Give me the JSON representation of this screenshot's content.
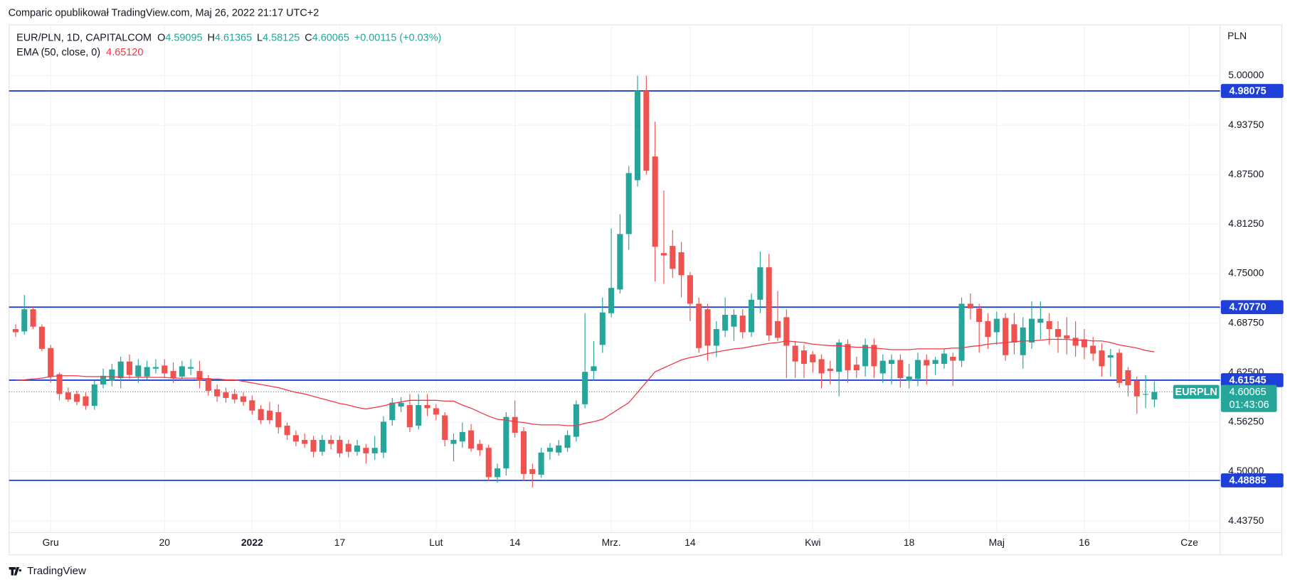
{
  "header": {
    "attribution": "Comparic opublikował TradingView.com, Maj 26, 2022 21:17 UTC+2"
  },
  "footer": {
    "brand": "TradingView"
  },
  "chart_data": {
    "type": "candlestick",
    "symbol": "EUR/PLN, 1D, CAPITALCOM",
    "ohlc_letters": [
      "O",
      "H",
      "L",
      "C"
    ],
    "change": "+0.00115 (+0.03%)",
    "currency": "PLN",
    "up_color": "#26a69a",
    "down_color": "#ef5350",
    "open": [
      4.68,
      4.677,
      4.705,
      4.683,
      4.656,
      4.623,
      4.6,
      4.598,
      4.595,
      4.583,
      4.61,
      4.615,
      4.618,
      4.639,
      4.62,
      4.62,
      4.63,
      4.634,
      4.627,
      4.62,
      4.63,
      4.627,
      4.618,
      4.604,
      4.6,
      4.598,
      4.595,
      4.59,
      4.579,
      4.577,
      4.575,
      4.558,
      4.546,
      4.54,
      4.54,
      4.525,
      4.54,
      4.54,
      4.535,
      4.525,
      4.53,
      4.523,
      4.524,
      4.565,
      4.582,
      4.584,
      4.558,
      4.584,
      4.58,
      4.571,
      4.535,
      4.538,
      4.552,
      4.535,
      4.53,
      4.493,
      4.504,
      4.569,
      4.551,
      4.503,
      4.496,
      4.525,
      4.524,
      4.53,
      4.544,
      4.585,
      4.627,
      4.66,
      4.7,
      4.73,
      4.8,
      4.868,
      4.981,
      4.898,
      4.776,
      4.785,
      4.777,
      4.748,
      4.712,
      4.705,
      4.659,
      4.678,
      4.683,
      4.697,
      4.676,
      4.717,
      4.758,
      4.69,
      4.695,
      4.659,
      4.653,
      4.648,
      4.642,
      4.63,
      4.626,
      4.661,
      4.635,
      4.633,
      4.66,
      4.624,
      4.636,
      4.641,
      4.615,
      4.617,
      4.641,
      4.636,
      4.636,
      4.645,
      4.64,
      4.712,
      4.706,
      4.69,
      4.676,
      4.694,
      4.686,
      4.647,
      4.663,
      4.688,
      4.69,
      4.68,
      4.672,
      4.669,
      4.667,
      4.659,
      4.653,
      4.644,
      4.65,
      4.628,
      4.615,
      4.597,
      4.59095
    ],
    "high": [
      4.686,
      4.723,
      4.708,
      4.686,
      4.66,
      4.625,
      4.606,
      4.602,
      4.6,
      4.615,
      4.63,
      4.636,
      4.645,
      4.648,
      4.642,
      4.64,
      4.642,
      4.642,
      4.638,
      4.64,
      4.642,
      4.64,
      4.622,
      4.61,
      4.606,
      4.604,
      4.6,
      4.596,
      4.584,
      4.588,
      4.585,
      4.562,
      4.552,
      4.548,
      4.545,
      4.546,
      4.546,
      4.545,
      4.54,
      4.54,
      4.535,
      4.545,
      4.57,
      4.593,
      4.594,
      4.598,
      4.598,
      4.598,
      4.585,
      4.575,
      4.548,
      4.562,
      4.56,
      4.54,
      4.534,
      4.51,
      4.575,
      4.59,
      4.556,
      4.51,
      4.53,
      4.536,
      4.54,
      4.552,
      4.59,
      4.7,
      4.665,
      4.72,
      4.807,
      4.825,
      4.886,
      5.0,
      5.0,
      4.942,
      4.855,
      4.805,
      4.79,
      4.752,
      4.72,
      4.712,
      4.69,
      4.72,
      4.705,
      4.705,
      4.725,
      4.778,
      4.775,
      4.728,
      4.705,
      4.665,
      4.66,
      4.652,
      4.648,
      4.64,
      4.667,
      4.667,
      4.645,
      4.668,
      4.668,
      4.648,
      4.648,
      4.648,
      4.636,
      4.65,
      4.648,
      4.645,
      4.655,
      4.65,
      4.72,
      4.725,
      4.712,
      4.7,
      4.702,
      4.7,
      4.7,
      4.695,
      4.715,
      4.715,
      4.7,
      4.69,
      4.695,
      4.69,
      4.68,
      4.67,
      4.662,
      4.655,
      4.655,
      4.632,
      4.62,
      4.622,
      4.61365
    ],
    "low": [
      4.67,
      4.673,
      4.68,
      4.652,
      4.612,
      4.59,
      4.588,
      4.584,
      4.578,
      4.578,
      4.605,
      4.608,
      4.605,
      4.617,
      4.612,
      4.616,
      4.624,
      4.618,
      4.612,
      4.615,
      4.622,
      4.605,
      4.596,
      4.588,
      4.587,
      4.586,
      4.583,
      4.572,
      4.56,
      4.56,
      4.548,
      4.54,
      4.532,
      4.53,
      4.518,
      4.52,
      4.528,
      4.518,
      4.518,
      4.52,
      4.51,
      4.515,
      4.517,
      4.558,
      4.575,
      4.55,
      4.553,
      4.57,
      4.565,
      4.532,
      4.513,
      4.53,
      4.525,
      4.52,
      4.488,
      4.486,
      4.495,
      4.543,
      4.488,
      4.48,
      4.492,
      4.515,
      4.52,
      4.525,
      4.538,
      4.58,
      4.615,
      4.65,
      4.695,
      4.725,
      4.78,
      4.86,
      4.875,
      4.74,
      4.737,
      4.745,
      4.72,
      4.69,
      4.65,
      4.64,
      4.645,
      4.67,
      4.665,
      4.668,
      4.67,
      4.7,
      4.665,
      4.665,
      4.618,
      4.618,
      4.618,
      4.625,
      4.605,
      4.61,
      4.595,
      4.612,
      4.618,
      4.62,
      4.618,
      4.612,
      4.61,
      4.606,
      4.605,
      4.608,
      4.61,
      4.622,
      4.63,
      4.608,
      4.632,
      4.692,
      4.65,
      4.655,
      4.66,
      4.64,
      4.648,
      4.63,
      4.655,
      4.667,
      4.66,
      4.65,
      4.648,
      4.645,
      4.642,
      4.64,
      4.62,
      4.62,
      4.606,
      4.595,
      4.573,
      4.58,
      4.58125
    ],
    "close": [
      4.676,
      4.705,
      4.683,
      4.655,
      4.62,
      4.598,
      4.591,
      4.588,
      4.583,
      4.61,
      4.621,
      4.629,
      4.639,
      4.622,
      4.634,
      4.632,
      4.632,
      4.624,
      4.618,
      4.633,
      4.632,
      4.615,
      4.602,
      4.595,
      4.593,
      4.591,
      4.588,
      4.577,
      4.565,
      4.565,
      4.556,
      4.546,
      4.538,
      4.535,
      4.525,
      4.54,
      4.535,
      4.523,
      4.525,
      4.533,
      4.523,
      4.53,
      4.563,
      4.587,
      4.587,
      4.556,
      4.584,
      4.58,
      4.572,
      4.54,
      4.54,
      4.55,
      4.529,
      4.527,
      4.493,
      4.504,
      4.569,
      4.549,
      4.497,
      4.497,
      4.524,
      4.53,
      4.533,
      4.546,
      4.585,
      4.626,
      4.633,
      4.701,
      4.732,
      4.8,
      4.877,
      4.981,
      4.88,
      4.784,
      4.773,
      4.756,
      4.748,
      4.712,
      4.656,
      4.659,
      4.68,
      4.698,
      4.698,
      4.676,
      4.717,
      4.758,
      4.672,
      4.669,
      4.659,
      4.639,
      4.636,
      4.638,
      4.624,
      4.627,
      4.663,
      4.628,
      4.628,
      4.66,
      4.633,
      4.64,
      4.641,
      4.618,
      4.62,
      4.641,
      4.634,
      4.641,
      4.649,
      4.64,
      4.712,
      4.706,
      4.689,
      4.67,
      4.693,
      4.647,
      4.663,
      4.682,
      4.693,
      4.693,
      4.68,
      4.67,
      4.668,
      4.659,
      4.657,
      4.649,
      4.633,
      4.647,
      4.612,
      4.609,
      4.595,
      4.598,
      4.60065
    ],
    "ema": {
      "name": "EMA (50, close, 0)",
      "color": "#f23645",
      "last_label": "4.65120",
      "values": [
        4.615,
        4.616,
        4.617,
        4.618,
        4.62,
        4.621,
        4.621,
        4.621,
        4.62,
        4.62,
        4.62,
        4.62,
        4.619,
        4.619,
        4.619,
        4.619,
        4.619,
        4.619,
        4.618,
        4.618,
        4.618,
        4.618,
        4.617,
        4.617,
        4.616,
        4.616,
        4.614,
        4.612,
        4.61,
        4.608,
        4.606,
        4.603,
        4.6,
        4.598,
        4.595,
        4.592,
        4.589,
        4.586,
        4.584,
        4.581,
        4.579,
        4.581,
        4.583,
        4.586,
        4.588,
        4.59,
        4.59,
        4.59,
        4.59,
        4.589,
        4.589,
        4.584,
        4.58,
        4.575,
        4.57,
        4.566,
        4.565,
        4.563,
        4.562,
        4.56,
        4.559,
        4.559,
        4.559,
        4.558,
        4.558,
        4.561,
        4.563,
        4.566,
        4.573,
        4.58,
        4.587,
        4.6,
        4.613,
        4.626,
        4.631,
        4.636,
        4.641,
        4.644,
        4.646,
        4.649,
        4.651,
        4.653,
        4.655,
        4.656,
        4.658,
        4.66,
        4.662,
        4.663,
        4.665,
        4.664,
        4.663,
        4.661,
        4.66,
        4.659,
        4.659,
        4.658,
        4.657,
        4.657,
        4.656,
        4.655,
        4.654,
        4.654,
        4.654,
        4.655,
        4.655,
        4.655,
        4.655,
        4.656,
        4.656,
        4.658,
        4.659,
        4.661,
        4.662,
        4.663,
        4.664,
        4.665,
        4.665,
        4.666,
        4.667,
        4.667,
        4.667,
        4.666,
        4.666,
        4.665,
        4.665,
        4.663,
        4.66,
        4.658,
        4.656,
        4.653,
        4.6512
      ]
    },
    "ylim": [
      4.4229,
      5.0643
    ],
    "yticks": [
      {
        "value": 4.4375,
        "label": "4.43750"
      },
      {
        "value": 4.5,
        "label": "4.50000"
      },
      {
        "value": 4.5625,
        "label": "4.56250"
      },
      {
        "value": 4.625,
        "label": "4.62500"
      },
      {
        "value": 4.6875,
        "label": "4.68750"
      },
      {
        "value": 4.75,
        "label": "4.75000"
      },
      {
        "value": 4.8125,
        "label": "4.81250"
      },
      {
        "value": 4.875,
        "label": "4.87500"
      },
      {
        "value": 4.9375,
        "label": "4.93750"
      },
      {
        "value": 5.0,
        "label": "5.00000"
      }
    ],
    "xlim": [
      -0.75,
      137.5
    ],
    "xticks": [
      {
        "value": 4,
        "label": "Gru"
      },
      {
        "value": 17,
        "label": "20"
      },
      {
        "value": 27,
        "label": "2022"
      },
      {
        "value": 37,
        "label": "17"
      },
      {
        "value": 48,
        "label": "Lut"
      },
      {
        "value": 57,
        "label": "14"
      },
      {
        "value": 68,
        "label": "Mrz."
      },
      {
        "value": 77,
        "label": "14"
      },
      {
        "value": 91,
        "label": "Kwi"
      },
      {
        "value": 102,
        "label": "18"
      },
      {
        "value": 112,
        "label": "Maj"
      },
      {
        "value": 122,
        "label": "16"
      },
      {
        "value": 134,
        "label": "Cze"
      }
    ],
    "grid": true,
    "level_color": "#1e40d8",
    "levels": [
      {
        "value": 4.98075,
        "label": "4.98075"
      },
      {
        "value": 4.7077,
        "label": "4.70770"
      },
      {
        "value": 4.61545,
        "label": "4.61545"
      },
      {
        "value": 4.48885,
        "label": "4.48885"
      }
    ],
    "price_line": {
      "symbol": "EURPLN",
      "countdown": "01:43:06"
    }
  }
}
